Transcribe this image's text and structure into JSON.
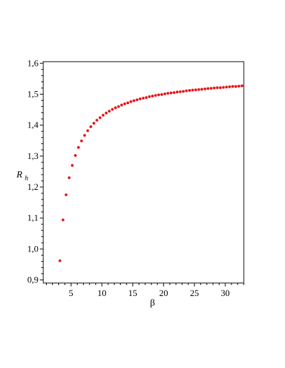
{
  "chart_data": {
    "type": "scatter",
    "xlabel": "β",
    "ylabel": "R",
    "ylabel_subscript": "h",
    "xlim": [
      0.5,
      33
    ],
    "ylim": [
      0.89,
      1.605
    ],
    "grid": false,
    "legend": "none",
    "marker_color": "#e8141b",
    "x_ticks": [
      5,
      10,
      15,
      20,
      25,
      30
    ],
    "x_tick_labels": [
      "5",
      "10",
      "15",
      "20",
      "25",
      "30"
    ],
    "y_ticks": [
      0.9,
      1.0,
      1.1,
      1.2,
      1.3,
      1.4,
      1.5,
      1.6
    ],
    "y_tick_labels": [
      "0,9",
      "1,0",
      "1,1",
      "1,2",
      "1,3",
      "1,4",
      "1,5",
      "1,6"
    ],
    "series": [
      {
        "x": [
          3.2,
          3.7,
          4.2,
          4.7,
          5.2,
          5.7,
          6.2,
          6.7,
          7.2,
          7.7,
          8.2,
          8.7,
          9.2,
          9.7,
          10.2,
          10.7,
          11.2,
          11.7,
          12.2,
          12.7,
          13.2,
          13.7,
          14.2,
          14.7,
          15.2,
          15.7,
          16.2,
          16.7,
          17.2,
          17.7,
          18.2,
          18.7,
          19.2,
          19.7,
          20.2,
          20.7,
          21.2,
          21.7,
          22.2,
          22.7,
          23.2,
          23.7,
          24.2,
          24.7,
          25.2,
          25.7,
          26.2,
          26.7,
          27.2,
          27.7,
          28.2,
          28.7,
          29.2,
          29.7,
          30.2,
          30.7,
          31.2,
          31.7,
          32.2,
          32.7
        ],
        "values": [
          0.962,
          1.094,
          1.175,
          1.23,
          1.27,
          1.302,
          1.328,
          1.349,
          1.367,
          1.382,
          1.395,
          1.406,
          1.416,
          1.424,
          1.432,
          1.439,
          1.445,
          1.451,
          1.456,
          1.46,
          1.465,
          1.469,
          1.472,
          1.476,
          1.479,
          1.482,
          1.485,
          1.487,
          1.489,
          1.492,
          1.494,
          1.496,
          1.498,
          1.499,
          1.501,
          1.503,
          1.504,
          1.505,
          1.507,
          1.508,
          1.509,
          1.511,
          1.512,
          1.513,
          1.514,
          1.515,
          1.516,
          1.517,
          1.518,
          1.519,
          1.52,
          1.521,
          1.521,
          1.522,
          1.523,
          1.524,
          1.525,
          1.525,
          1.526,
          1.527
        ]
      }
    ]
  }
}
